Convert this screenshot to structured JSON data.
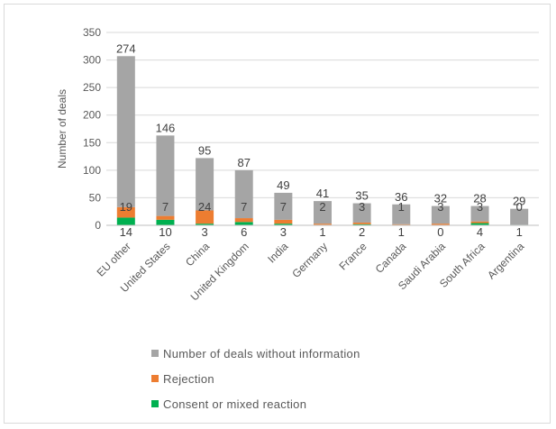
{
  "chart_data": {
    "type": "bar",
    "stacked": true,
    "ylabel": "Number of deals",
    "ylim": [
      0,
      350
    ],
    "yticks": [
      0,
      50,
      100,
      150,
      200,
      250,
      300,
      350
    ],
    "grid": true,
    "legend_position": "bottom",
    "categories": [
      "EU other",
      "United States",
      "China",
      "United Kingdom",
      "India",
      "Germany",
      "France",
      "Canada",
      "Saudi Arabia",
      "South Africa",
      "Argentina"
    ],
    "series": [
      {
        "name": "Consent or mixed reaction",
        "color": "#00b050",
        "values": [
          14,
          10,
          3,
          6,
          3,
          1,
          2,
          1,
          0,
          4,
          1
        ]
      },
      {
        "name": "Rejection",
        "color": "#ed7d31",
        "values": [
          19,
          7,
          24,
          7,
          7,
          2,
          3,
          1,
          3,
          3,
          0
        ]
      },
      {
        "name": "Number of deals without information",
        "color": "#a5a5a5",
        "values": [
          274,
          146,
          95,
          87,
          49,
          41,
          35,
          36,
          32,
          28,
          29
        ]
      }
    ]
  },
  "legend": {
    "items": [
      {
        "label": "Number of deals without information",
        "color": "#a5a5a5"
      },
      {
        "label": "Rejection",
        "color": "#ed7d31"
      },
      {
        "label": "Consent or mixed reaction",
        "color": "#00b050"
      }
    ]
  }
}
